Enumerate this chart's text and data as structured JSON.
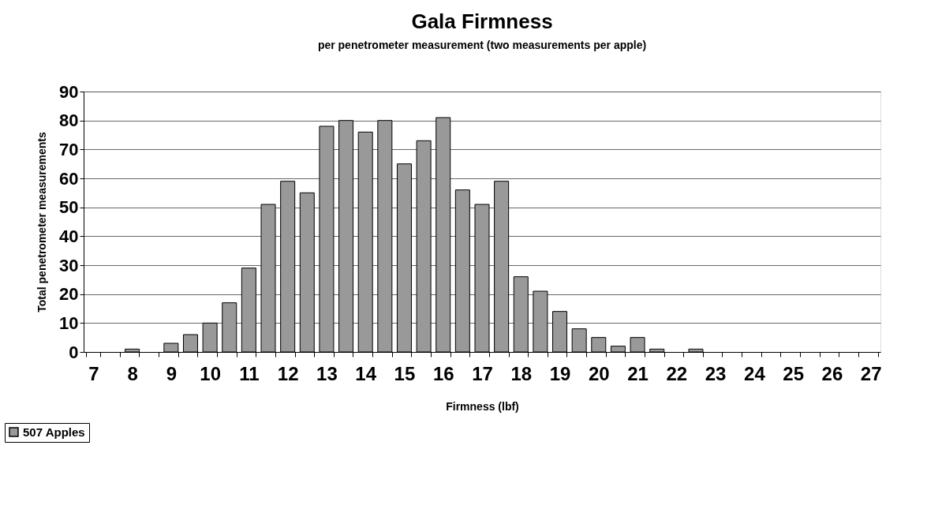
{
  "chart_data": {
    "type": "bar",
    "title": "Gala Firmness",
    "subtitle": "per penetrometer measurement (two measurements per apple)",
    "xlabel": "Firmness (lbf)",
    "ylabel": "Total penetrometer measurements",
    "categories": [
      "7",
      null,
      "8",
      null,
      "9",
      null,
      "10",
      null,
      "11",
      null,
      "12",
      null,
      "13",
      null,
      "14",
      null,
      "15",
      null,
      "16",
      null,
      "17",
      null,
      "18",
      null,
      "19",
      null,
      "20",
      null,
      "21",
      null,
      "22",
      null,
      "23",
      null,
      "24",
      null,
      "25",
      null,
      "26",
      null,
      "27"
    ],
    "series": [
      {
        "name": "507 Apples",
        "color": "#999999",
        "values": [
          0,
          0,
          1,
          0,
          3,
          6,
          10,
          17,
          29,
          51,
          59,
          55,
          78,
          80,
          76,
          80,
          65,
          73,
          81,
          56,
          51,
          59,
          26,
          21,
          14,
          8,
          5,
          2,
          5,
          1,
          0,
          1,
          0,
          0,
          0,
          0,
          0,
          0,
          0,
          0,
          0
        ]
      }
    ],
    "ylim": [
      0,
      90
    ],
    "yticks": [
      0,
      10,
      20,
      30,
      40,
      50,
      60,
      70,
      80,
      90
    ],
    "grid": "y",
    "legend": "bottom left"
  }
}
